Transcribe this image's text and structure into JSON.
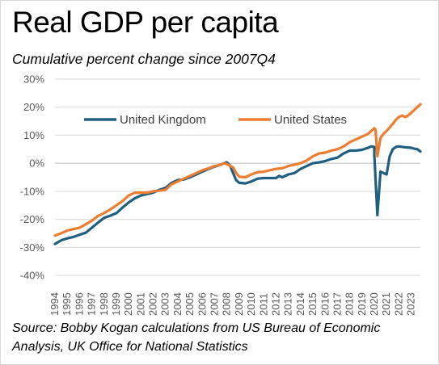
{
  "chart_data": {
    "type": "line",
    "title": "Real GDP per capita",
    "subtitle": "Cumulative percent change since 2007Q4",
    "source": "Source: Bobby Kogan calculations from US Bureau of Economic Analysis, UK Office for National Statistics",
    "xlabel": "",
    "ylabel": "",
    "ylim": [
      -40,
      30
    ],
    "y_ticks": [
      30,
      20,
      10,
      0,
      -10,
      -20,
      -30,
      -40
    ],
    "y_tick_labels": [
      "30%",
      "20%",
      "10%",
      "0%",
      "-10%",
      "-20%",
      "-30%",
      "-40%"
    ],
    "x_tick_labels": [
      "1994",
      "1995",
      "1996",
      "1997",
      "1998",
      "1999",
      "2000",
      "2001",
      "2002",
      "2003",
      "2004",
      "2005",
      "2006",
      "2007",
      "2008",
      "2009",
      "2010",
      "2011",
      "2012",
      "2013",
      "2014",
      "2015",
      "2016",
      "2017",
      "2018",
      "2019",
      "2020",
      "2021",
      "2022",
      "2023"
    ],
    "x_range": [
      1994,
      2023.75
    ],
    "grid": "horizontal",
    "legend_position": "top",
    "series": [
      {
        "name": "United Kingdom",
        "color": "#1F5F7F",
        "points": [
          [
            1994,
            -28.8
          ],
          [
            1994.5,
            -27.5
          ],
          [
            1995,
            -26.8
          ],
          [
            1995.5,
            -26.3
          ],
          [
            1996,
            -25.5
          ],
          [
            1996.5,
            -24.8
          ],
          [
            1997,
            -23
          ],
          [
            1997.5,
            -21.2
          ],
          [
            1998,
            -19.5
          ],
          [
            1998.5,
            -18.7
          ],
          [
            1999,
            -17.8
          ],
          [
            1999.5,
            -15.8
          ],
          [
            2000,
            -14
          ],
          [
            2000.5,
            -12.5
          ],
          [
            2001,
            -11.5
          ],
          [
            2001.5,
            -11
          ],
          [
            2002,
            -10.5
          ],
          [
            2002.5,
            -9.5
          ],
          [
            2003,
            -8.8
          ],
          [
            2003.5,
            -7
          ],
          [
            2004,
            -6
          ],
          [
            2004.5,
            -5.8
          ],
          [
            2005,
            -5
          ],
          [
            2005.5,
            -4
          ],
          [
            2006,
            -3
          ],
          [
            2006.5,
            -2
          ],
          [
            2007,
            -1.2
          ],
          [
            2007.5,
            -0.5
          ],
          [
            2007.75,
            0
          ],
          [
            2008,
            0.3
          ],
          [
            2008.25,
            -0.8
          ],
          [
            2008.5,
            -3.5
          ],
          [
            2008.75,
            -6
          ],
          [
            2009,
            -7
          ],
          [
            2009.5,
            -7.2
          ],
          [
            2010,
            -6.5
          ],
          [
            2010.5,
            -5.5
          ],
          [
            2011,
            -5.3
          ],
          [
            2011.5,
            -5.3
          ],
          [
            2012,
            -5.3
          ],
          [
            2012.25,
            -4.5
          ],
          [
            2012.5,
            -5
          ],
          [
            2013,
            -4
          ],
          [
            2013.5,
            -3.5
          ],
          [
            2014,
            -2
          ],
          [
            2014.5,
            -1
          ],
          [
            2015,
            0
          ],
          [
            2015.5,
            0.3
          ],
          [
            2016,
            0.8
          ],
          [
            2016.5,
            1.5
          ],
          [
            2017,
            2
          ],
          [
            2017.5,
            3.5
          ],
          [
            2018,
            4.5
          ],
          [
            2018.5,
            4.5
          ],
          [
            2019,
            4.8
          ],
          [
            2019.5,
            5.5
          ],
          [
            2019.75,
            6
          ],
          [
            2020,
            5.8
          ],
          [
            2020,
            3
          ],
          [
            2020.25,
            -18.5
          ],
          [
            2020.5,
            -3
          ],
          [
            2020.75,
            -3.5
          ],
          [
            2021,
            -4
          ],
          [
            2021.25,
            2.5
          ],
          [
            2021.5,
            5
          ],
          [
            2021.75,
            5.8
          ],
          [
            2022,
            6
          ],
          [
            2022.5,
            5.7
          ],
          [
            2023,
            5.5
          ],
          [
            2023.25,
            5.2
          ],
          [
            2023.5,
            5
          ],
          [
            2023.75,
            4.2
          ]
        ]
      },
      {
        "name": "United States",
        "color": "#ED7D31",
        "points": [
          [
            1994,
            -25.8
          ],
          [
            1994.5,
            -25
          ],
          [
            1995,
            -24
          ],
          [
            1995.5,
            -23.5
          ],
          [
            1996,
            -23
          ],
          [
            1996.5,
            -21.8
          ],
          [
            1997,
            -20.5
          ],
          [
            1997.5,
            -18.8
          ],
          [
            1998,
            -17.8
          ],
          [
            1998.5,
            -16.5
          ],
          [
            1999,
            -15
          ],
          [
            1999.5,
            -13.5
          ],
          [
            2000,
            -11.5
          ],
          [
            2000.5,
            -10.5
          ],
          [
            2001,
            -10.5
          ],
          [
            2001.5,
            -10.5
          ],
          [
            2002,
            -10
          ],
          [
            2002.5,
            -9.8
          ],
          [
            2003,
            -9.5
          ],
          [
            2003.5,
            -7.5
          ],
          [
            2004,
            -6.5
          ],
          [
            2004.5,
            -5.5
          ],
          [
            2005,
            -4.5
          ],
          [
            2005.5,
            -3.5
          ],
          [
            2006,
            -2.5
          ],
          [
            2006.5,
            -1.8
          ],
          [
            2007,
            -1
          ],
          [
            2007.5,
            -0.5
          ],
          [
            2007.75,
            0
          ],
          [
            2008,
            -0.3
          ],
          [
            2008.5,
            -1.5
          ],
          [
            2008.75,
            -3.5
          ],
          [
            2009,
            -4.8
          ],
          [
            2009.5,
            -5
          ],
          [
            2010,
            -4
          ],
          [
            2010.5,
            -3.2
          ],
          [
            2011,
            -3
          ],
          [
            2011.5,
            -2.5
          ],
          [
            2012,
            -2
          ],
          [
            2012.5,
            -1.8
          ],
          [
            2013,
            -1
          ],
          [
            2013.5,
            -0.5
          ],
          [
            2014,
            0
          ],
          [
            2014.5,
            1
          ],
          [
            2015,
            2.5
          ],
          [
            2015.5,
            3.5
          ],
          [
            2016,
            3.8
          ],
          [
            2016.5,
            4.5
          ],
          [
            2017,
            5
          ],
          [
            2017.5,
            6
          ],
          [
            2018,
            7.5
          ],
          [
            2018.5,
            8.5
          ],
          [
            2019,
            9.5
          ],
          [
            2019.5,
            10.5
          ],
          [
            2019.75,
            11.5
          ],
          [
            2020,
            12.5
          ],
          [
            2020.1,
            12
          ],
          [
            2020.25,
            2.5
          ],
          [
            2020.5,
            9
          ],
          [
            2020.75,
            10.5
          ],
          [
            2021,
            11.5
          ],
          [
            2021.5,
            14
          ],
          [
            2021.75,
            15.5
          ],
          [
            2022,
            16.5
          ],
          [
            2022.25,
            17
          ],
          [
            2022.5,
            16.5
          ],
          [
            2022.75,
            17
          ],
          [
            2023,
            18
          ],
          [
            2023.25,
            19
          ],
          [
            2023.5,
            20
          ],
          [
            2023.75,
            21
          ]
        ]
      }
    ]
  }
}
